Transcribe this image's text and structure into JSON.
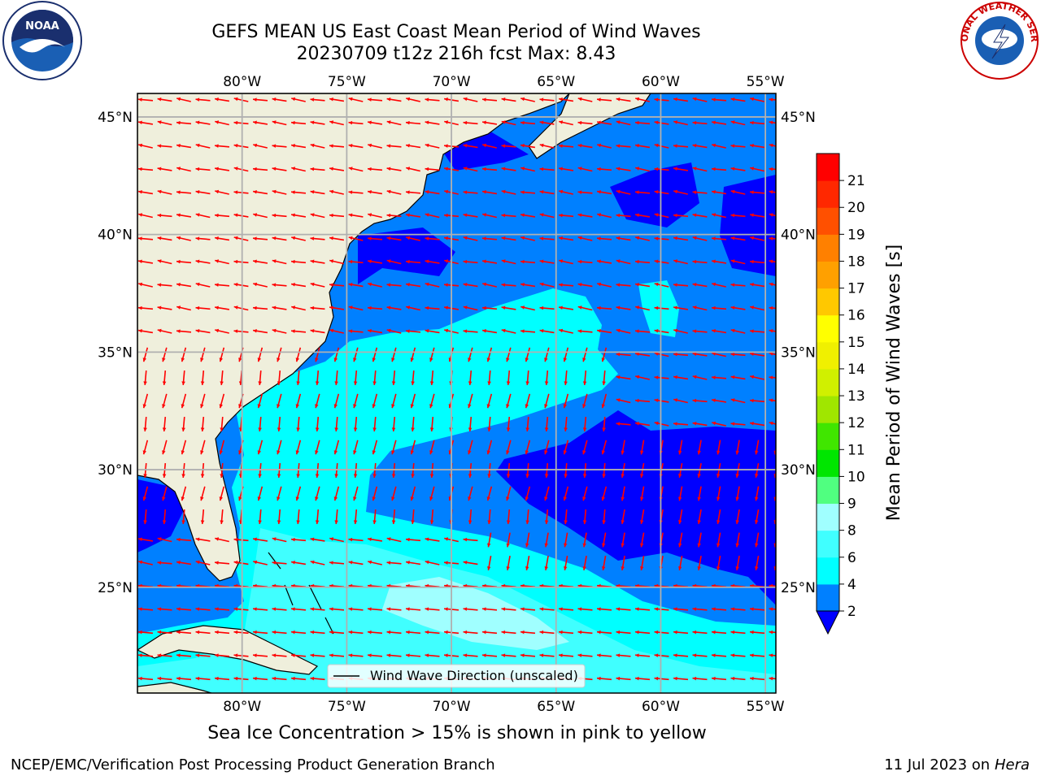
{
  "header": {
    "title_line1": "GEFS MEAN US East Coast Mean Period of Wind Waves",
    "title_line2": "20230709 t12z 216h fcst   Max: 8.43"
  },
  "logos": {
    "left": "noaa-logo",
    "left_text": "NOAA",
    "right": "nws-logo",
    "right_text": "NATIONAL WEATHER SERVICE"
  },
  "map": {
    "lon_range": [
      -85,
      -54.5
    ],
    "lat_range": [
      20.5,
      46
    ],
    "lon_ticks": [
      {
        "v": -80,
        "label": "80°W"
      },
      {
        "v": -75,
        "label": "75°W"
      },
      {
        "v": -70,
        "label": "70°W"
      },
      {
        "v": -65,
        "label": "65°W"
      },
      {
        "v": -60,
        "label": "60°W"
      },
      {
        "v": -55,
        "label": "55°W"
      }
    ],
    "lat_ticks": [
      {
        "v": 45,
        "label": "45°N"
      },
      {
        "v": 40,
        "label": "40°N"
      },
      {
        "v": 35,
        "label": "35°N"
      },
      {
        "v": 30,
        "label": "30°N"
      },
      {
        "v": 25,
        "label": "25°N"
      }
    ],
    "legend_label": "Wind Wave Direction (unscaled)",
    "colors": {
      "land": "#efefdc",
      "ocean_dark": "#0000ff",
      "ocean_mid": "#0080ff",
      "ocean_cyan": "#00ffff",
      "ocean_lightcyan": "#40ffff",
      "ocean_pale": "#a0ffff",
      "arrow": "#ff0000",
      "grid": "#b0b0b0"
    }
  },
  "colorbar": {
    "label": "Mean Period of Wind Waves [s]",
    "levels": [
      "2",
      "4",
      "6",
      "8",
      "9",
      "10",
      "11",
      "12",
      "13",
      "14",
      "15",
      "16",
      "17",
      "18",
      "19",
      "20",
      "21"
    ],
    "colors": [
      "#0080ff",
      "#00ffff",
      "#40ffff",
      "#a0ffff",
      "#50ff80",
      "#00e600",
      "#40e600",
      "#a0e600",
      "#d0f000",
      "#f0f000",
      "#ffff00",
      "#ffc800",
      "#ffa000",
      "#ff8000",
      "#ff5000",
      "#ff2800",
      "#ff0000"
    ],
    "under_color": "#0000ff"
  },
  "chart_data": {
    "type": "heatmap",
    "title": "GEFS MEAN US East Coast Mean Period of Wind Waves",
    "subtitle": "20230709 t12z 216h fcst   Max: 8.43",
    "variable": "Mean Period of Wind Waves [s]",
    "max": 8.43,
    "colorbar_levels": [
      2,
      4,
      6,
      8,
      9,
      10,
      11,
      12,
      13,
      14,
      15,
      16,
      17,
      18,
      19,
      20,
      21
    ],
    "xlim": [
      -85,
      -54.5
    ],
    "ylim": [
      20.5,
      46
    ]
  },
  "notes": {
    "sea_ice": "Sea Ice Concentration > 15% is shown in pink to yellow"
  },
  "footer": {
    "left": "NCEP/EMC/Verification Post Processing Product Generation Branch",
    "right_date": "11 Jul 2023 on ",
    "right_machine": "Hera"
  }
}
